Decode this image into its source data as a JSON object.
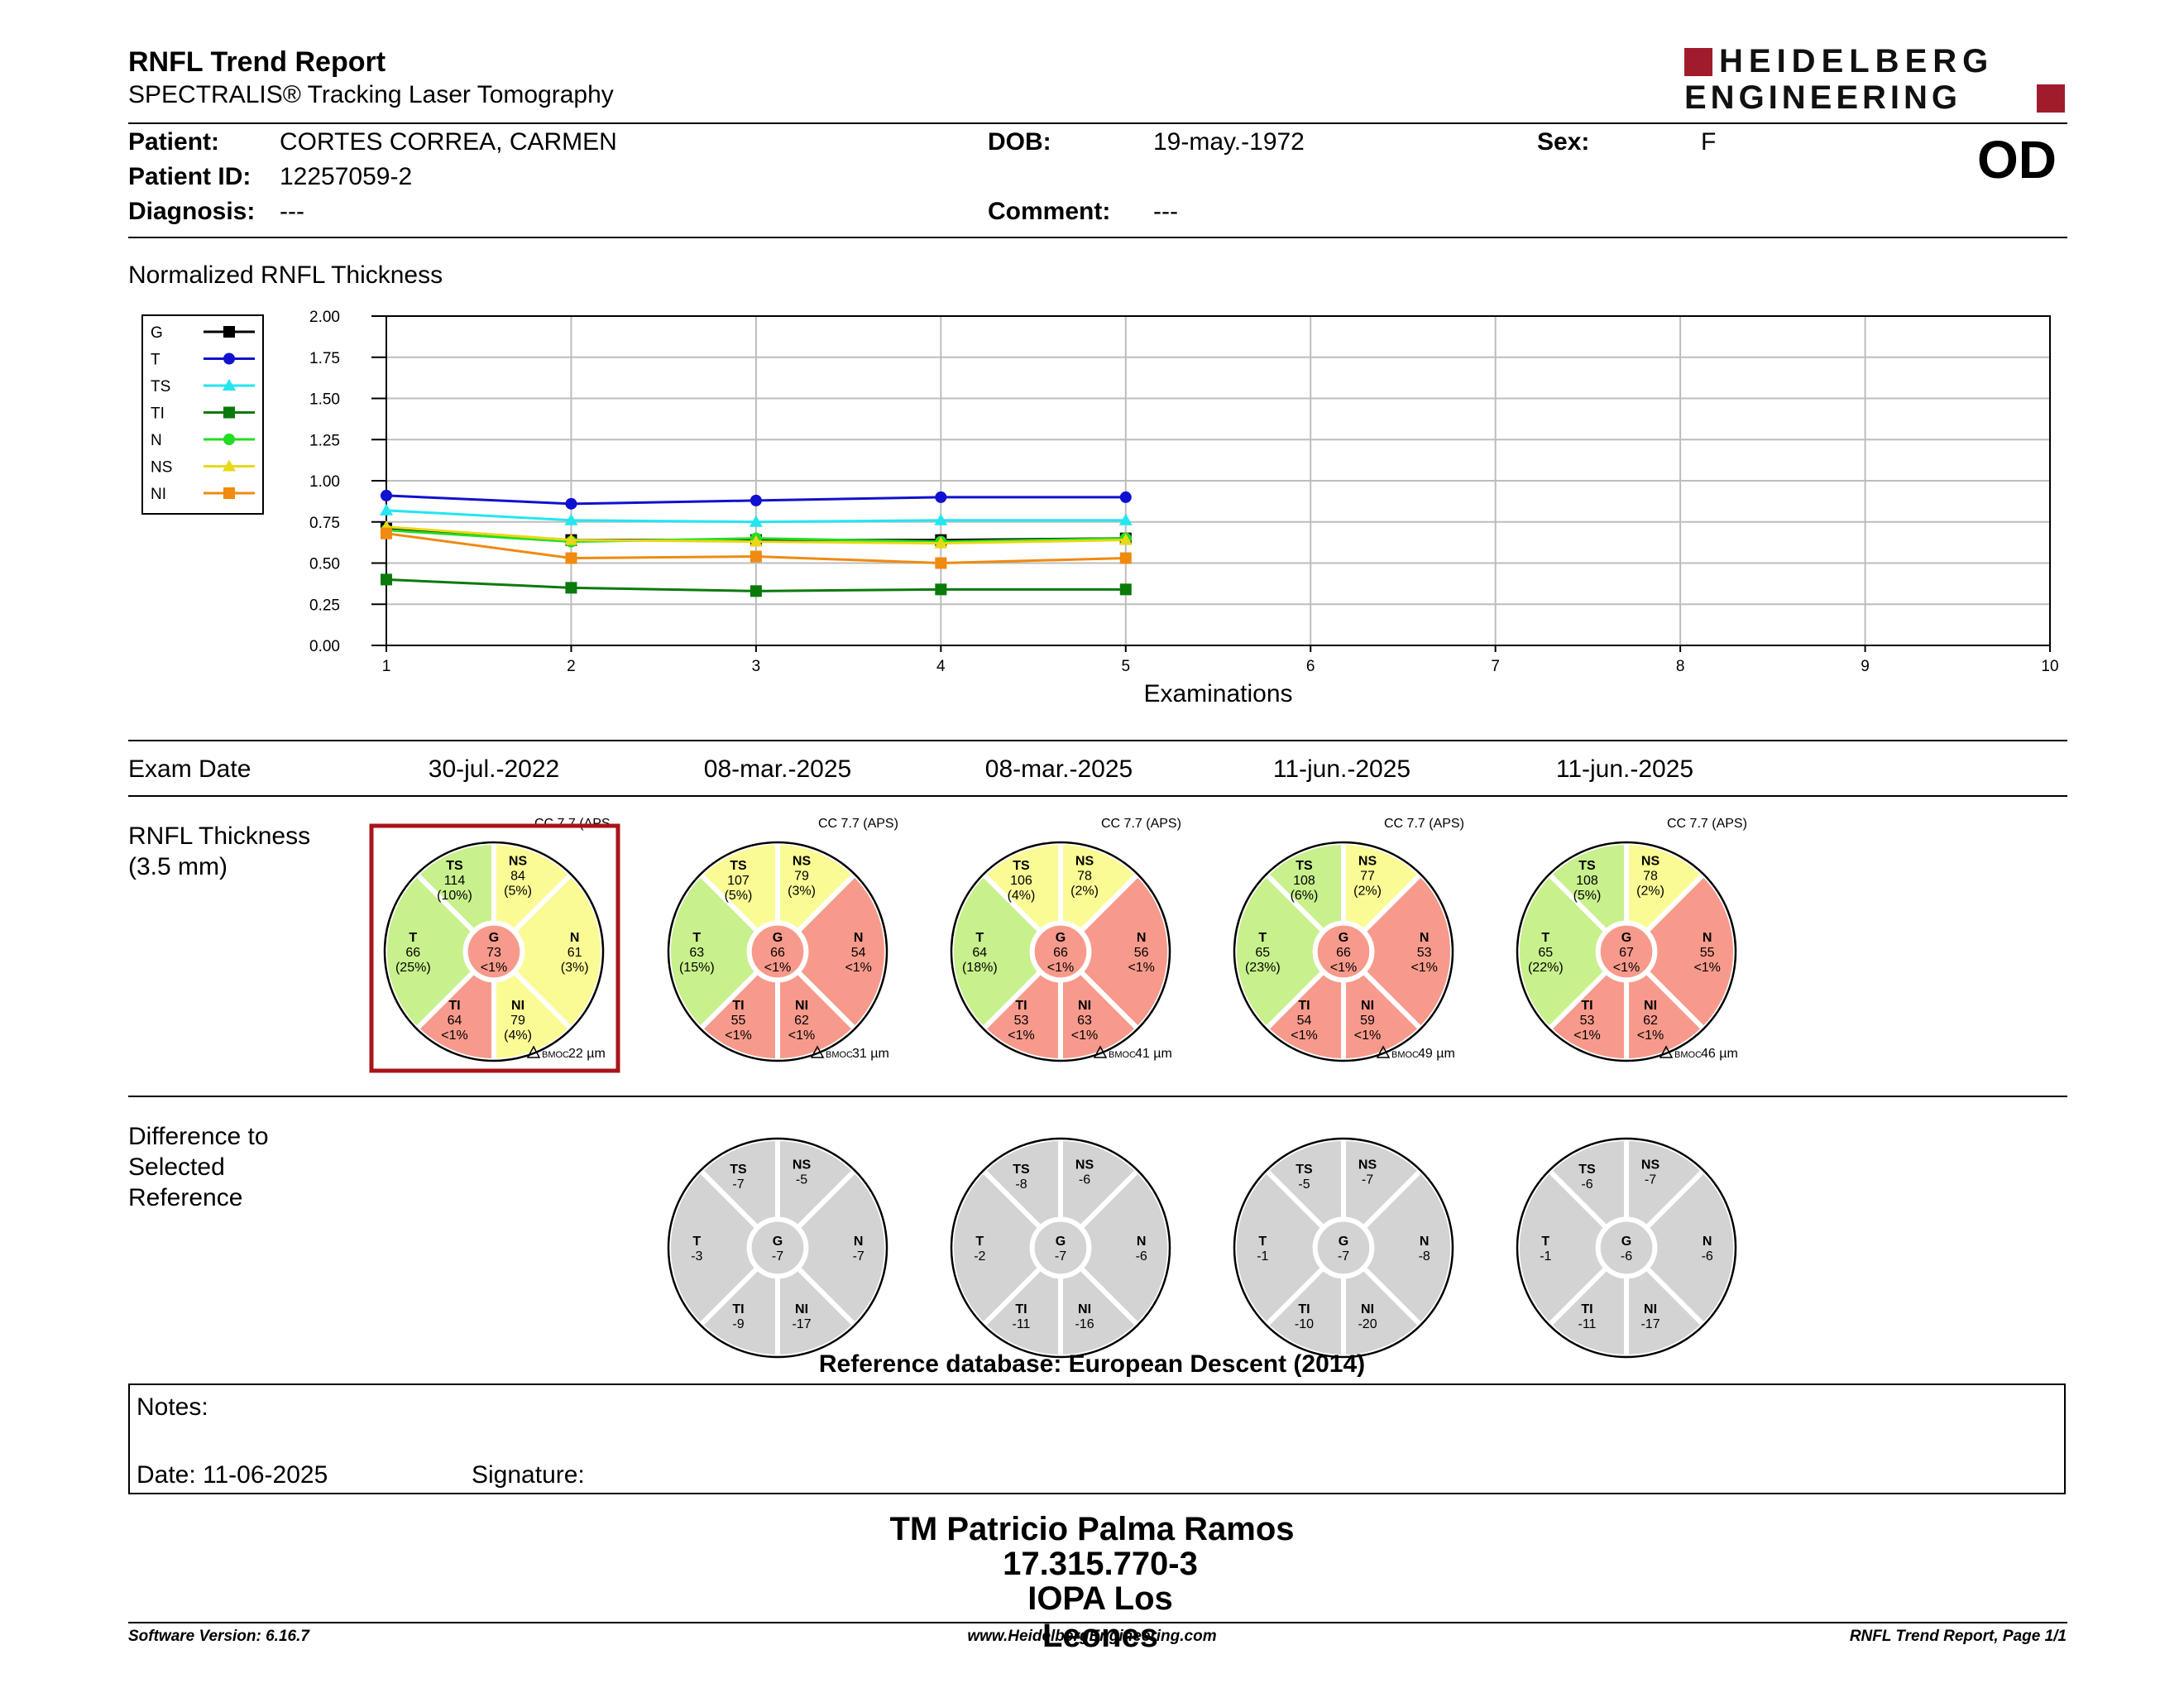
{
  "header": {
    "title": "RNFL Trend Report",
    "subtitle": "SPECTRALIS® Tracking Laser Tomography",
    "logo_line1": "HEIDELBERG",
    "logo_line2": "ENGINEERING",
    "eye": "OD"
  },
  "patient": {
    "patient_label": "Patient:",
    "patient_value": "CORTES CORREA, CARMEN",
    "id_label": "Patient ID:",
    "id_value": "12257059-2",
    "diag_label": "Diagnosis:",
    "diag_value": "---",
    "dob_label": "DOB:",
    "dob_value": "19-may.-1972",
    "comment_label": "Comment:",
    "comment_value": "---",
    "sex_label": "Sex:",
    "sex_value": "F"
  },
  "chart_data": {
    "type": "line",
    "title": "Normalized RNFL Thickness",
    "xlabel": "Examinations",
    "ylabel": "",
    "xlim": [
      1,
      10
    ],
    "ylim": [
      0,
      2
    ],
    "x_ticks": [
      "1",
      "2",
      "3",
      "4",
      "5",
      "6",
      "7",
      "8",
      "9",
      "10"
    ],
    "y_ticks": [
      "0.00",
      "0.25",
      "0.50",
      "0.75",
      "1.00",
      "1.25",
      "1.50",
      "1.75",
      "2.00"
    ],
    "grid": true,
    "legend_position": "left",
    "x": [
      1,
      2,
      3,
      4,
      5
    ],
    "series": [
      {
        "name": "G",
        "color": "#000000",
        "marker": "square",
        "values": [
          0.71,
          0.64,
          0.64,
          0.64,
          0.65
        ]
      },
      {
        "name": "T",
        "color": "#1010d0",
        "marker": "circle",
        "values": [
          0.91,
          0.86,
          0.88,
          0.9,
          0.9
        ]
      },
      {
        "name": "TS",
        "color": "#22e6f0",
        "marker": "triangle",
        "values": [
          0.82,
          0.76,
          0.75,
          0.76,
          0.76
        ]
      },
      {
        "name": "TI",
        "color": "#0a7a0a",
        "marker": "square",
        "values": [
          0.4,
          0.35,
          0.33,
          0.34,
          0.34
        ]
      },
      {
        "name": "N",
        "color": "#22dd22",
        "marker": "circle",
        "values": [
          0.7,
          0.63,
          0.65,
          0.63,
          0.65
        ]
      },
      {
        "name": "NS",
        "color": "#e8d818",
        "marker": "triangle",
        "values": [
          0.72,
          0.64,
          0.63,
          0.62,
          0.64
        ]
      },
      {
        "name": "NI",
        "color": "#f08a10",
        "marker": "square",
        "values": [
          0.68,
          0.53,
          0.54,
          0.5,
          0.53
        ]
      }
    ]
  },
  "exam_dates": {
    "label": "Exam Date",
    "dates": [
      "30-jul.-2022",
      "08-mar.-2025",
      "08-mar.-2025",
      "11-jun.-2025",
      "11-jun.-2025"
    ]
  },
  "thickness": {
    "label_line1": "RNFL Thickness",
    "label_line2": "(3.5 mm)",
    "colors": {
      "within": "#c8f08c",
      "borderline": "#fbfb96",
      "outside": "#f79a8c"
    },
    "exams": [
      {
        "cc": "CC 7.7 (APS",
        "bmoc": "BMOC 22 µm",
        "selected": true,
        "TS": {
          "name": "TS",
          "value": "114",
          "pct": "(10%)",
          "cls": "within"
        },
        "NS": {
          "name": "NS",
          "value": "84",
          "pct": "(5%)",
          "cls": "borderline"
        },
        "T": {
          "name": "T",
          "value": "66",
          "pct": "(25%)",
          "cls": "within"
        },
        "N": {
          "name": "N",
          "value": "61",
          "pct": "(3%)",
          "cls": "borderline"
        },
        "TI": {
          "name": "TI",
          "value": "64",
          "pct": "<1%",
          "cls": "outside"
        },
        "NI": {
          "name": "NI",
          "value": "79",
          "pct": "(4%)",
          "cls": "borderline"
        },
        "G": {
          "name": "G",
          "value": "73",
          "pct": "<1%",
          "cls": "outside"
        }
      },
      {
        "cc": "CC 7.7 (APS)",
        "bmoc": "BMOC 31 µm",
        "selected": false,
        "TS": {
          "name": "TS",
          "value": "107",
          "pct": "(5%)",
          "cls": "borderline"
        },
        "NS": {
          "name": "NS",
          "value": "79",
          "pct": "(3%)",
          "cls": "borderline"
        },
        "T": {
          "name": "T",
          "value": "63",
          "pct": "(15%)",
          "cls": "within"
        },
        "N": {
          "name": "N",
          "value": "54",
          "pct": "<1%",
          "cls": "outside"
        },
        "TI": {
          "name": "TI",
          "value": "55",
          "pct": "<1%",
          "cls": "outside"
        },
        "NI": {
          "name": "NI",
          "value": "62",
          "pct": "<1%",
          "cls": "outside"
        },
        "G": {
          "name": "G",
          "value": "66",
          "pct": "<1%",
          "cls": "outside"
        }
      },
      {
        "cc": "CC 7.7 (APS)",
        "bmoc": "BMOC 41 µm",
        "selected": false,
        "TS": {
          "name": "TS",
          "value": "106",
          "pct": "(4%)",
          "cls": "borderline"
        },
        "NS": {
          "name": "NS",
          "value": "78",
          "pct": "(2%)",
          "cls": "borderline"
        },
        "T": {
          "name": "T",
          "value": "64",
          "pct": "(18%)",
          "cls": "within"
        },
        "N": {
          "name": "N",
          "value": "56",
          "pct": "<1%",
          "cls": "outside"
        },
        "TI": {
          "name": "TI",
          "value": "53",
          "pct": "<1%",
          "cls": "outside"
        },
        "NI": {
          "name": "NI",
          "value": "63",
          "pct": "<1%",
          "cls": "outside"
        },
        "G": {
          "name": "G",
          "value": "66",
          "pct": "<1%",
          "cls": "outside"
        }
      },
      {
        "cc": "CC 7.7 (APS)",
        "bmoc": "BMOC 49 µm",
        "selected": false,
        "TS": {
          "name": "TS",
          "value": "108",
          "pct": "(6%)",
          "cls": "within"
        },
        "NS": {
          "name": "NS",
          "value": "77",
          "pct": "(2%)",
          "cls": "borderline"
        },
        "T": {
          "name": "T",
          "value": "65",
          "pct": "(23%)",
          "cls": "within"
        },
        "N": {
          "name": "N",
          "value": "53",
          "pct": "<1%",
          "cls": "outside"
        },
        "TI": {
          "name": "TI",
          "value": "54",
          "pct": "<1%",
          "cls": "outside"
        },
        "NI": {
          "name": "NI",
          "value": "59",
          "pct": "<1%",
          "cls": "outside"
        },
        "G": {
          "name": "G",
          "value": "66",
          "pct": "<1%",
          "cls": "outside"
        }
      },
      {
        "cc": "CC 7.7 (APS)",
        "bmoc": "BMOC 46 µm",
        "selected": false,
        "TS": {
          "name": "TS",
          "value": "108",
          "pct": "(5%)",
          "cls": "within"
        },
        "NS": {
          "name": "NS",
          "value": "78",
          "pct": "(2%)",
          "cls": "borderline"
        },
        "T": {
          "name": "T",
          "value": "65",
          "pct": "(22%)",
          "cls": "within"
        },
        "N": {
          "name": "N",
          "value": "55",
          "pct": "<1%",
          "cls": "outside"
        },
        "TI": {
          "name": "TI",
          "value": "53",
          "pct": "<1%",
          "cls": "outside"
        },
        "NI": {
          "name": "NI",
          "value": "62",
          "pct": "<1%",
          "cls": "outside"
        },
        "G": {
          "name": "G",
          "value": "67",
          "pct": "<1%",
          "cls": "outside"
        }
      }
    ]
  },
  "difference": {
    "label_line1": "Difference to",
    "label_line2": "Selected",
    "label_line3": "Reference",
    "color": "#d3d3d3",
    "exams": [
      {
        "TS": {
          "name": "TS",
          "value": "-7"
        },
        "NS": {
          "name": "NS",
          "value": "-5"
        },
        "T": {
          "name": "T",
          "value": "-3"
        },
        "N": {
          "name": "N",
          "value": "-7"
        },
        "TI": {
          "name": "TI",
          "value": "-9"
        },
        "NI": {
          "name": "NI",
          "value": "-17"
        },
        "G": {
          "name": "G",
          "value": "-7"
        }
      },
      {
        "TS": {
          "name": "TS",
          "value": "-8"
        },
        "NS": {
          "name": "NS",
          "value": "-6"
        },
        "T": {
          "name": "T",
          "value": "-2"
        },
        "N": {
          "name": "N",
          "value": "-6"
        },
        "TI": {
          "name": "TI",
          "value": "-11"
        },
        "NI": {
          "name": "NI",
          "value": "-16"
        },
        "G": {
          "name": "G",
          "value": "-7"
        }
      },
      {
        "TS": {
          "name": "TS",
          "value": "-5"
        },
        "NS": {
          "name": "NS",
          "value": "-7"
        },
        "T": {
          "name": "T",
          "value": "-1"
        },
        "N": {
          "name": "N",
          "value": "-8"
        },
        "TI": {
          "name": "TI",
          "value": "-10"
        },
        "NI": {
          "name": "NI",
          "value": "-20"
        },
        "G": {
          "name": "G",
          "value": "-7"
        }
      },
      {
        "TS": {
          "name": "TS",
          "value": "-6"
        },
        "NS": {
          "name": "NS",
          "value": "-7"
        },
        "T": {
          "name": "T",
          "value": "-1"
        },
        "N": {
          "name": "N",
          "value": "-6"
        },
        "TI": {
          "name": "TI",
          "value": "-11"
        },
        "NI": {
          "name": "NI",
          "value": "-17"
        },
        "G": {
          "name": "G",
          "value": "-6"
        }
      }
    ]
  },
  "reference_db": "Reference database: European Descent (2014)",
  "notes": {
    "notes_label": "Notes:",
    "date_label": "Date: 11-06-2025",
    "signature_label": "Signature:"
  },
  "signature": {
    "name": "TM Patricio Palma Ramos",
    "id": "17.315.770-3",
    "org": "IOPA Los Leones"
  },
  "footer": {
    "version": "Software Version: 6.16.7",
    "url": "www.HeidelbergEngineering.com",
    "page": "RNFL Trend Report, Page 1/1"
  }
}
